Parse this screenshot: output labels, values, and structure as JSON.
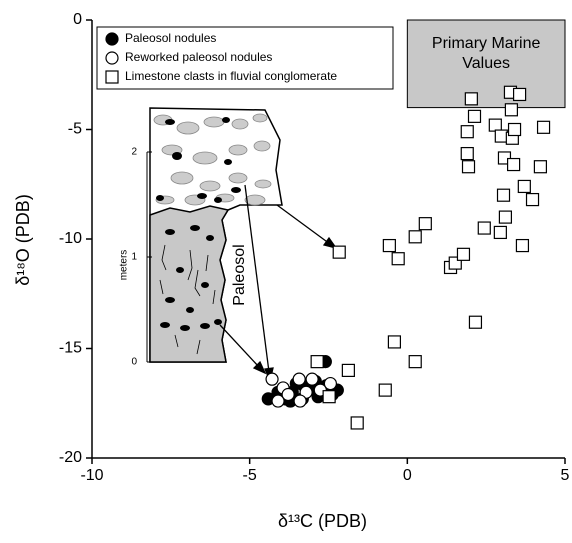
{
  "chart_data": {
    "type": "scatter",
    "xlabel": "δ¹³C (PDB)",
    "ylabel": "δ¹⁸O (PDB)",
    "xlim": [
      -10,
      5
    ],
    "ylim": [
      -20,
      0
    ],
    "xticks": [
      -10,
      -5,
      0,
      5
    ],
    "yticks": [
      0,
      -5,
      -10,
      -15,
      -20
    ],
    "legend": "upper left",
    "region": {
      "label_lines": [
        "Primary Marine",
        "Values"
      ],
      "x": [
        0,
        5
      ],
      "y": [
        -4,
        0
      ],
      "color": "#c8c8c8"
    },
    "series": [
      {
        "name": "Paleosol nodules",
        "marker": "circle",
        "color": "#000000",
        "fill": "#000000",
        "x": [
          -2.6,
          -4.41,
          -4.1,
          -3.87,
          -3.65,
          -3.52,
          -3.33,
          -3.08,
          -2.83,
          -2.57,
          -2.38,
          -2.22,
          -3.71,
          -3.27,
          -2.92
        ],
        "values": [
          -15.6,
          -17.3,
          -17.0,
          -17.3,
          -17.0,
          -16.6,
          -17.3,
          -16.8,
          -17.2,
          -16.7,
          -17.1,
          -16.9,
          -17.4,
          -16.7,
          -16.5
        ]
      },
      {
        "name": "Reworked paleosol nodules",
        "marker": "circle",
        "color": "#000000",
        "fill": "#ffffff",
        "x": [
          -4.29,
          -3.94,
          -3.43,
          -3.21,
          -2.76,
          -2.44,
          -3.02,
          -3.78,
          -4.1,
          -3.4
        ],
        "values": [
          -16.4,
          -16.8,
          -16.4,
          -17.0,
          -16.9,
          -16.6,
          -16.4,
          -17.1,
          -17.4,
          -17.4
        ]
      },
      {
        "name": "Limestone clasts in fluvial conglomerate",
        "marker": "square",
        "color": "#000000",
        "fill": "#ffffff",
        "x": [
          -2.16,
          -0.57,
          -0.29,
          0.25,
          0.57,
          1.37,
          1.52,
          1.78,
          1.9,
          1.9,
          1.94,
          2.13,
          2.03,
          2.79,
          2.98,
          3.05,
          3.08,
          3.11,
          3.27,
          3.3,
          3.33,
          3.37,
          3.4,
          3.56,
          3.71,
          3.65,
          3.97,
          4.22,
          4.32,
          2.95,
          2.44,
          2.16,
          -2.86,
          -1.87,
          -1.59,
          -0.7,
          -0.41,
          0.25,
          -2.48
        ],
        "values": [
          -10.6,
          -10.3,
          -10.9,
          -9.9,
          -9.3,
          -11.3,
          -11.1,
          -10.7,
          -5.1,
          -6.1,
          -6.7,
          -4.4,
          -3.6,
          -4.8,
          -5.3,
          -8.0,
          -6.3,
          -9.0,
          -3.3,
          -4.1,
          -5.4,
          -6.6,
          -5.0,
          -3.4,
          -7.6,
          -10.3,
          -8.2,
          -6.7,
          -4.9,
          -9.7,
          -9.5,
          -13.8,
          -15.6,
          -16.0,
          -18.4,
          -16.9,
          -14.7,
          -15.6,
          -17.2
        ]
      }
    ]
  },
  "inset": {
    "scale_label": "meters",
    "scale_ticks": [
      0,
      1,
      2
    ],
    "label": "Paleosol"
  }
}
